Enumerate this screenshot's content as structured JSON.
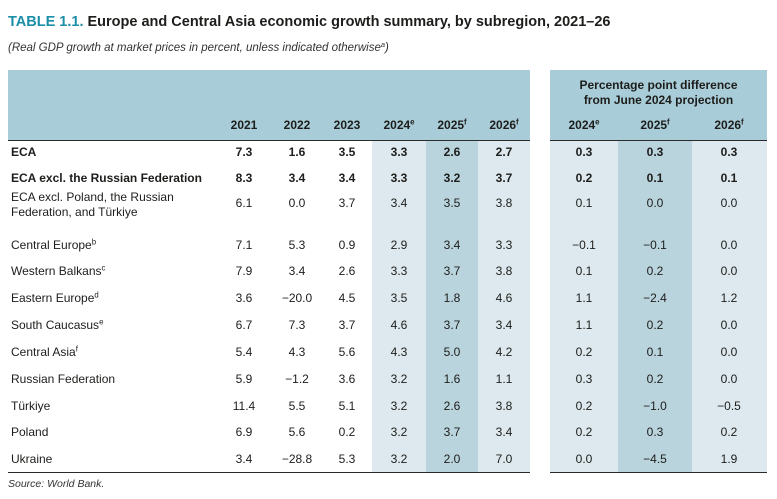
{
  "title": {
    "label": "TABLE 1.1.",
    "text": "Europe and Central Asia economic growth summary, by subregion, 2021–26"
  },
  "subtitle": {
    "text": "(Real GDP growth at market prices in percent, unless indicated otherwise",
    "sup": "a",
    "close": ")"
  },
  "difference_header": {
    "line1": "Percentage point difference",
    "line2": "from June 2024 projection"
  },
  "year_headers": [
    {
      "year": "2021",
      "sup": ""
    },
    {
      "year": "2022",
      "sup": ""
    },
    {
      "year": "2023",
      "sup": ""
    },
    {
      "year": "2024",
      "sup": "e"
    },
    {
      "year": "2025",
      "sup": "f"
    },
    {
      "year": "2026",
      "sup": "f"
    }
  ],
  "diff_headers": [
    {
      "year": "2024",
      "sup": "e"
    },
    {
      "year": "2025",
      "sup": "f"
    },
    {
      "year": "2026",
      "sup": "f"
    }
  ],
  "rows": [
    {
      "label": "ECA",
      "sup": "",
      "values": [
        "7.3",
        "1.6",
        "3.5",
        "3.3",
        "2.6",
        "2.7"
      ],
      "diffs": [
        "0.3",
        "0.3",
        "0.3"
      ]
    },
    {
      "label": "ECA excl. the Russian Federation",
      "sup": "",
      "values": [
        "8.3",
        "3.4",
        "3.4",
        "3.3",
        "3.2",
        "3.7"
      ],
      "diffs": [
        "0.2",
        "0.1",
        "0.1"
      ]
    },
    {
      "label": "ECA excl. Poland, the Russian",
      "label2": "Federation, and Türkiye",
      "sup": "",
      "values": [
        "6.1",
        "0.0",
        "3.7",
        "3.4",
        "3.5",
        "3.8"
      ],
      "diffs": [
        "0.1",
        "0.0",
        "0.0"
      ]
    },
    {
      "label": "Central Europe",
      "sup": "b",
      "values": [
        "7.1",
        "5.3",
        "0.9",
        "2.9",
        "3.4",
        "3.3"
      ],
      "diffs": [
        "−0.1",
        "−0.1",
        "0.0"
      ]
    },
    {
      "label": "Western Balkans",
      "sup": "c",
      "values": [
        "7.9",
        "3.4",
        "2.6",
        "3.3",
        "3.7",
        "3.8"
      ],
      "diffs": [
        "0.1",
        "0.2",
        "0.0"
      ]
    },
    {
      "label": "Eastern Europe",
      "sup": "d",
      "values": [
        "3.6",
        "−20.0",
        "4.5",
        "3.5",
        "1.8",
        "4.6"
      ],
      "diffs": [
        "1.1",
        "−2.4",
        "1.2"
      ]
    },
    {
      "label": "South Caucasus",
      "sup": "e",
      "values": [
        "6.7",
        "7.3",
        "3.7",
        "4.6",
        "3.7",
        "3.4"
      ],
      "diffs": [
        "1.1",
        "0.2",
        "0.0"
      ]
    },
    {
      "label": "Central Asia",
      "sup": "f",
      "values": [
        "5.4",
        "4.3",
        "5.6",
        "4.3",
        "5.0",
        "4.2"
      ],
      "diffs": [
        "0.2",
        "0.1",
        "0.0"
      ]
    },
    {
      "label": "Russian Federation",
      "sup": "",
      "values": [
        "5.9",
        "−1.2",
        "3.6",
        "3.2",
        "1.6",
        "1.1"
      ],
      "diffs": [
        "0.3",
        "0.2",
        "0.0"
      ]
    },
    {
      "label": "Türkiye",
      "sup": "",
      "values": [
        "11.4",
        "5.5",
        "5.1",
        "3.2",
        "2.6",
        "3.8"
      ],
      "diffs": [
        "0.2",
        "−1.0",
        "−0.5"
      ]
    },
    {
      "label": "Poland",
      "sup": "",
      "values": [
        "6.9",
        "5.6",
        "0.2",
        "3.2",
        "3.7",
        "3.4"
      ],
      "diffs": [
        "0.2",
        "0.3",
        "0.2"
      ]
    },
    {
      "label": "Ukraine",
      "sup": "",
      "values": [
        "3.4",
        "−28.8",
        "5.3",
        "3.2",
        "2.0",
        "7.0"
      ],
      "diffs": [
        "0.0",
        "−4.5",
        "1.9"
      ]
    }
  ],
  "source": "Source: World Bank."
}
